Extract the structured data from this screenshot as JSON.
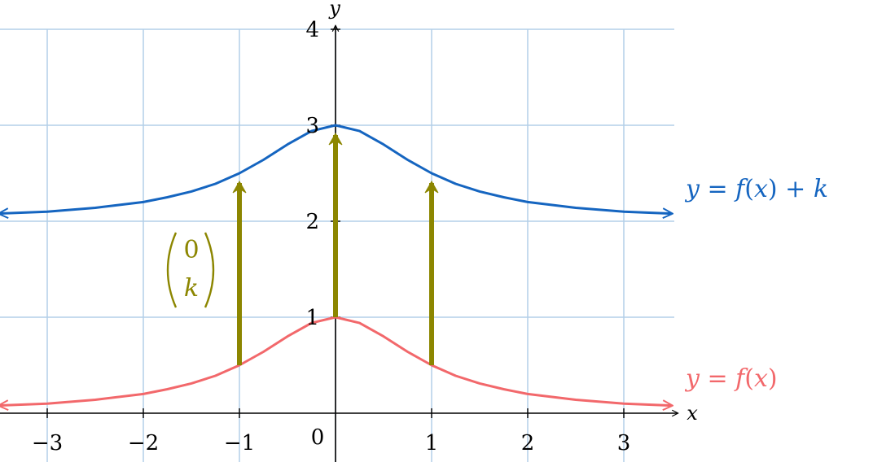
{
  "chart_data": {
    "type": "line",
    "xlabel": "x",
    "ylabel": "y",
    "xlim": [
      -3.5,
      3.5
    ],
    "ylim": [
      -0.5,
      4
    ],
    "grid": true,
    "x_ticks": [
      {
        "value": -3,
        "label": "−3"
      },
      {
        "value": -2,
        "label": "−2"
      },
      {
        "value": -1,
        "label": "−1"
      },
      {
        "value": 1,
        "label": "1"
      },
      {
        "value": 2,
        "label": "2"
      },
      {
        "value": 3,
        "label": "3"
      }
    ],
    "y_ticks": [
      {
        "value": 1,
        "label": "1"
      },
      {
        "value": 2,
        "label": "2"
      },
      {
        "value": 3,
        "label": "3"
      },
      {
        "value": 4,
        "label": "4"
      }
    ],
    "origin_label": "0",
    "series": [
      {
        "key": "f",
        "label_parts": [
          "y",
          " = ",
          "f",
          "(",
          "x",
          ")"
        ],
        "color": "#f2686b",
        "x": [
          -3.5,
          -3,
          -2.5,
          -2,
          -1.75,
          -1.5,
          -1.25,
          -1,
          -0.75,
          -0.5,
          -0.25,
          0,
          0.25,
          0.5,
          0.75,
          1,
          1.25,
          1.5,
          1.75,
          2,
          2.5,
          3,
          3.5
        ],
        "values": [
          0.08,
          0.1,
          0.14,
          0.2,
          0.25,
          0.31,
          0.39,
          0.5,
          0.64,
          0.8,
          0.94,
          1.0,
          0.94,
          0.8,
          0.64,
          0.5,
          0.39,
          0.31,
          0.25,
          0.2,
          0.14,
          0.1,
          0.08
        ]
      },
      {
        "key": "fk",
        "label_parts": [
          "y",
          " = ",
          "f",
          "(",
          "x",
          ") + ",
          "k"
        ],
        "color": "#1565c0",
        "x": [
          -3.5,
          -3,
          -2.5,
          -2,
          -1.75,
          -1.5,
          -1.25,
          -1,
          -0.75,
          -0.5,
          -0.25,
          0,
          0.25,
          0.5,
          0.75,
          1,
          1.25,
          1.5,
          1.75,
          2,
          2.5,
          3,
          3.5
        ],
        "values": [
          2.08,
          2.1,
          2.14,
          2.2,
          2.25,
          2.31,
          2.39,
          2.5,
          2.64,
          2.8,
          2.94,
          3.0,
          2.94,
          2.8,
          2.64,
          2.5,
          2.39,
          2.31,
          2.25,
          2.2,
          2.14,
          2.1,
          2.08
        ]
      }
    ],
    "vectors": {
      "color": "#8c8600",
      "arrows": [
        {
          "x": -1,
          "from": 0.5,
          "to": 2.5
        },
        {
          "x": 0,
          "from": 1.0,
          "to": 3.0
        },
        {
          "x": 1,
          "from": 0.5,
          "to": 2.5
        }
      ],
      "label_top": "0",
      "label_bottom": "k"
    },
    "colors": {
      "grid": "#b3cfe8",
      "axis": "#000000"
    }
  }
}
